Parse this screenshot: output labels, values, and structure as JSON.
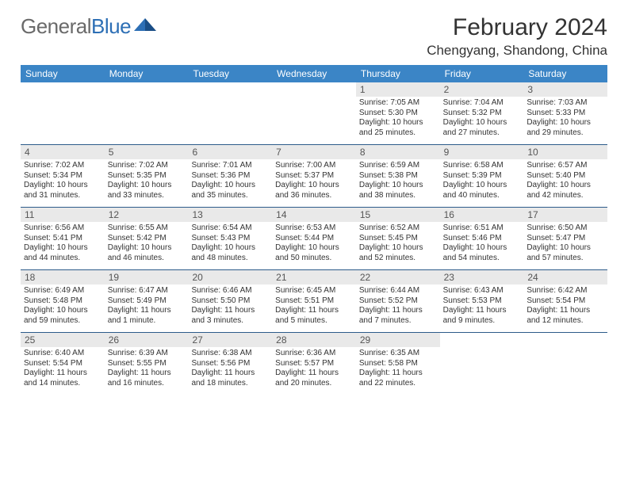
{
  "logo": {
    "text1": "General",
    "text2": "Blue"
  },
  "title": "February 2024",
  "location": "Chengyang, Shandong, China",
  "colors": {
    "header_bg": "#3b85c6",
    "header_text": "#ffffff",
    "daynum_bg": "#e9e9e9",
    "week_border": "#2d5b8a",
    "body_text": "#333333",
    "logo_gray": "#6a6a6a",
    "logo_blue": "#2d6fb5"
  },
  "day_headers": [
    "Sunday",
    "Monday",
    "Tuesday",
    "Wednesday",
    "Thursday",
    "Friday",
    "Saturday"
  ],
  "weeks": [
    [
      {
        "n": "",
        "sr": "",
        "ss": "",
        "dl": ""
      },
      {
        "n": "",
        "sr": "",
        "ss": "",
        "dl": ""
      },
      {
        "n": "",
        "sr": "",
        "ss": "",
        "dl": ""
      },
      {
        "n": "",
        "sr": "",
        "ss": "",
        "dl": ""
      },
      {
        "n": "1",
        "sr": "Sunrise: 7:05 AM",
        "ss": "Sunset: 5:30 PM",
        "dl": "Daylight: 10 hours and 25 minutes."
      },
      {
        "n": "2",
        "sr": "Sunrise: 7:04 AM",
        "ss": "Sunset: 5:32 PM",
        "dl": "Daylight: 10 hours and 27 minutes."
      },
      {
        "n": "3",
        "sr": "Sunrise: 7:03 AM",
        "ss": "Sunset: 5:33 PM",
        "dl": "Daylight: 10 hours and 29 minutes."
      }
    ],
    [
      {
        "n": "4",
        "sr": "Sunrise: 7:02 AM",
        "ss": "Sunset: 5:34 PM",
        "dl": "Daylight: 10 hours and 31 minutes."
      },
      {
        "n": "5",
        "sr": "Sunrise: 7:02 AM",
        "ss": "Sunset: 5:35 PM",
        "dl": "Daylight: 10 hours and 33 minutes."
      },
      {
        "n": "6",
        "sr": "Sunrise: 7:01 AM",
        "ss": "Sunset: 5:36 PM",
        "dl": "Daylight: 10 hours and 35 minutes."
      },
      {
        "n": "7",
        "sr": "Sunrise: 7:00 AM",
        "ss": "Sunset: 5:37 PM",
        "dl": "Daylight: 10 hours and 36 minutes."
      },
      {
        "n": "8",
        "sr": "Sunrise: 6:59 AM",
        "ss": "Sunset: 5:38 PM",
        "dl": "Daylight: 10 hours and 38 minutes."
      },
      {
        "n": "9",
        "sr": "Sunrise: 6:58 AM",
        "ss": "Sunset: 5:39 PM",
        "dl": "Daylight: 10 hours and 40 minutes."
      },
      {
        "n": "10",
        "sr": "Sunrise: 6:57 AM",
        "ss": "Sunset: 5:40 PM",
        "dl": "Daylight: 10 hours and 42 minutes."
      }
    ],
    [
      {
        "n": "11",
        "sr": "Sunrise: 6:56 AM",
        "ss": "Sunset: 5:41 PM",
        "dl": "Daylight: 10 hours and 44 minutes."
      },
      {
        "n": "12",
        "sr": "Sunrise: 6:55 AM",
        "ss": "Sunset: 5:42 PM",
        "dl": "Daylight: 10 hours and 46 minutes."
      },
      {
        "n": "13",
        "sr": "Sunrise: 6:54 AM",
        "ss": "Sunset: 5:43 PM",
        "dl": "Daylight: 10 hours and 48 minutes."
      },
      {
        "n": "14",
        "sr": "Sunrise: 6:53 AM",
        "ss": "Sunset: 5:44 PM",
        "dl": "Daylight: 10 hours and 50 minutes."
      },
      {
        "n": "15",
        "sr": "Sunrise: 6:52 AM",
        "ss": "Sunset: 5:45 PM",
        "dl": "Daylight: 10 hours and 52 minutes."
      },
      {
        "n": "16",
        "sr": "Sunrise: 6:51 AM",
        "ss": "Sunset: 5:46 PM",
        "dl": "Daylight: 10 hours and 54 minutes."
      },
      {
        "n": "17",
        "sr": "Sunrise: 6:50 AM",
        "ss": "Sunset: 5:47 PM",
        "dl": "Daylight: 10 hours and 57 minutes."
      }
    ],
    [
      {
        "n": "18",
        "sr": "Sunrise: 6:49 AM",
        "ss": "Sunset: 5:48 PM",
        "dl": "Daylight: 10 hours and 59 minutes."
      },
      {
        "n": "19",
        "sr": "Sunrise: 6:47 AM",
        "ss": "Sunset: 5:49 PM",
        "dl": "Daylight: 11 hours and 1 minute."
      },
      {
        "n": "20",
        "sr": "Sunrise: 6:46 AM",
        "ss": "Sunset: 5:50 PM",
        "dl": "Daylight: 11 hours and 3 minutes."
      },
      {
        "n": "21",
        "sr": "Sunrise: 6:45 AM",
        "ss": "Sunset: 5:51 PM",
        "dl": "Daylight: 11 hours and 5 minutes."
      },
      {
        "n": "22",
        "sr": "Sunrise: 6:44 AM",
        "ss": "Sunset: 5:52 PM",
        "dl": "Daylight: 11 hours and 7 minutes."
      },
      {
        "n": "23",
        "sr": "Sunrise: 6:43 AM",
        "ss": "Sunset: 5:53 PM",
        "dl": "Daylight: 11 hours and 9 minutes."
      },
      {
        "n": "24",
        "sr": "Sunrise: 6:42 AM",
        "ss": "Sunset: 5:54 PM",
        "dl": "Daylight: 11 hours and 12 minutes."
      }
    ],
    [
      {
        "n": "25",
        "sr": "Sunrise: 6:40 AM",
        "ss": "Sunset: 5:54 PM",
        "dl": "Daylight: 11 hours and 14 minutes."
      },
      {
        "n": "26",
        "sr": "Sunrise: 6:39 AM",
        "ss": "Sunset: 5:55 PM",
        "dl": "Daylight: 11 hours and 16 minutes."
      },
      {
        "n": "27",
        "sr": "Sunrise: 6:38 AM",
        "ss": "Sunset: 5:56 PM",
        "dl": "Daylight: 11 hours and 18 minutes."
      },
      {
        "n": "28",
        "sr": "Sunrise: 6:36 AM",
        "ss": "Sunset: 5:57 PM",
        "dl": "Daylight: 11 hours and 20 minutes."
      },
      {
        "n": "29",
        "sr": "Sunrise: 6:35 AM",
        "ss": "Sunset: 5:58 PM",
        "dl": "Daylight: 11 hours and 22 minutes."
      },
      {
        "n": "",
        "sr": "",
        "ss": "",
        "dl": ""
      },
      {
        "n": "",
        "sr": "",
        "ss": "",
        "dl": ""
      }
    ]
  ]
}
